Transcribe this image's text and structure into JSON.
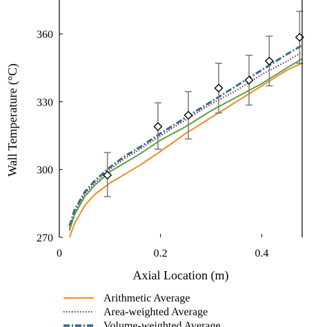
{
  "chart_data": {
    "type": "line",
    "xlabel": "Axial Location (m)",
    "ylabel": "Wall Temperature (°C)",
    "xlim": [
      0,
      0.48
    ],
    "ylim": [
      270,
      375
    ],
    "xticks": [
      0,
      0.2,
      0.4
    ],
    "xtick_labels": [
      "0",
      "0.2",
      "0.4"
    ],
    "yticks": [
      270,
      300,
      330,
      360
    ],
    "ytick_labels": [
      "270",
      "300",
      "330",
      "360"
    ],
    "grid": false,
    "legend_position": "bottom",
    "series": [
      {
        "name": "Arithmetic Average",
        "color": "#ED8B1F",
        "style": "solid",
        "x": [
          0.02,
          0.03,
          0.05,
          0.07,
          0.1,
          0.13,
          0.16,
          0.2,
          0.25,
          0.3,
          0.35,
          0.4,
          0.45,
          0.48
        ],
        "y": [
          270,
          276,
          284,
          289,
          294,
          298,
          302,
          308,
          316,
          323,
          330,
          337,
          344,
          347
        ]
      },
      {
        "name": "Area-weighted Average",
        "color": "#8B1A2B",
        "style": "dotted",
        "x": [
          0.02,
          0.03,
          0.05,
          0.07,
          0.1,
          0.13,
          0.16,
          0.2,
          0.25,
          0.3,
          0.35,
          0.4,
          0.45,
          0.48
        ],
        "y": [
          274,
          281,
          289,
          294,
          300,
          305,
          309,
          315,
          322,
          329,
          335,
          342,
          348,
          352
        ]
      },
      {
        "name": "Volume-weighted Average",
        "color": "#2E6B8A",
        "style": "dashdot",
        "x": [
          0.02,
          0.03,
          0.05,
          0.07,
          0.1,
          0.13,
          0.16,
          0.2,
          0.25,
          0.3,
          0.35,
          0.4,
          0.45,
          0.48
        ],
        "y": [
          275,
          282,
          290,
          295,
          301,
          306,
          310,
          316,
          323,
          330,
          337,
          344,
          351,
          355
        ]
      },
      {
        "name": "",
        "color": "#5A9E48",
        "style": "solid",
        "x": [
          0.02,
          0.03,
          0.05,
          0.07,
          0.1,
          0.13,
          0.16,
          0.2,
          0.25,
          0.3,
          0.35,
          0.4,
          0.45,
          0.48
        ],
        "y": [
          273,
          280,
          288,
          293,
          299,
          303,
          307,
          313,
          319,
          326,
          332,
          338,
          345,
          349
        ]
      }
    ],
    "experimental": {
      "x": [
        0.095,
        0.195,
        0.255,
        0.315,
        0.375,
        0.415,
        0.475
      ],
      "y": [
        297.5,
        319,
        324,
        336,
        339.5,
        348,
        358.5
      ],
      "err_low": [
        288,
        309,
        313.5,
        325,
        328.5,
        337,
        347
      ],
      "err_high": [
        307.5,
        329.5,
        334.5,
        347,
        350.5,
        359,
        370
      ]
    }
  }
}
